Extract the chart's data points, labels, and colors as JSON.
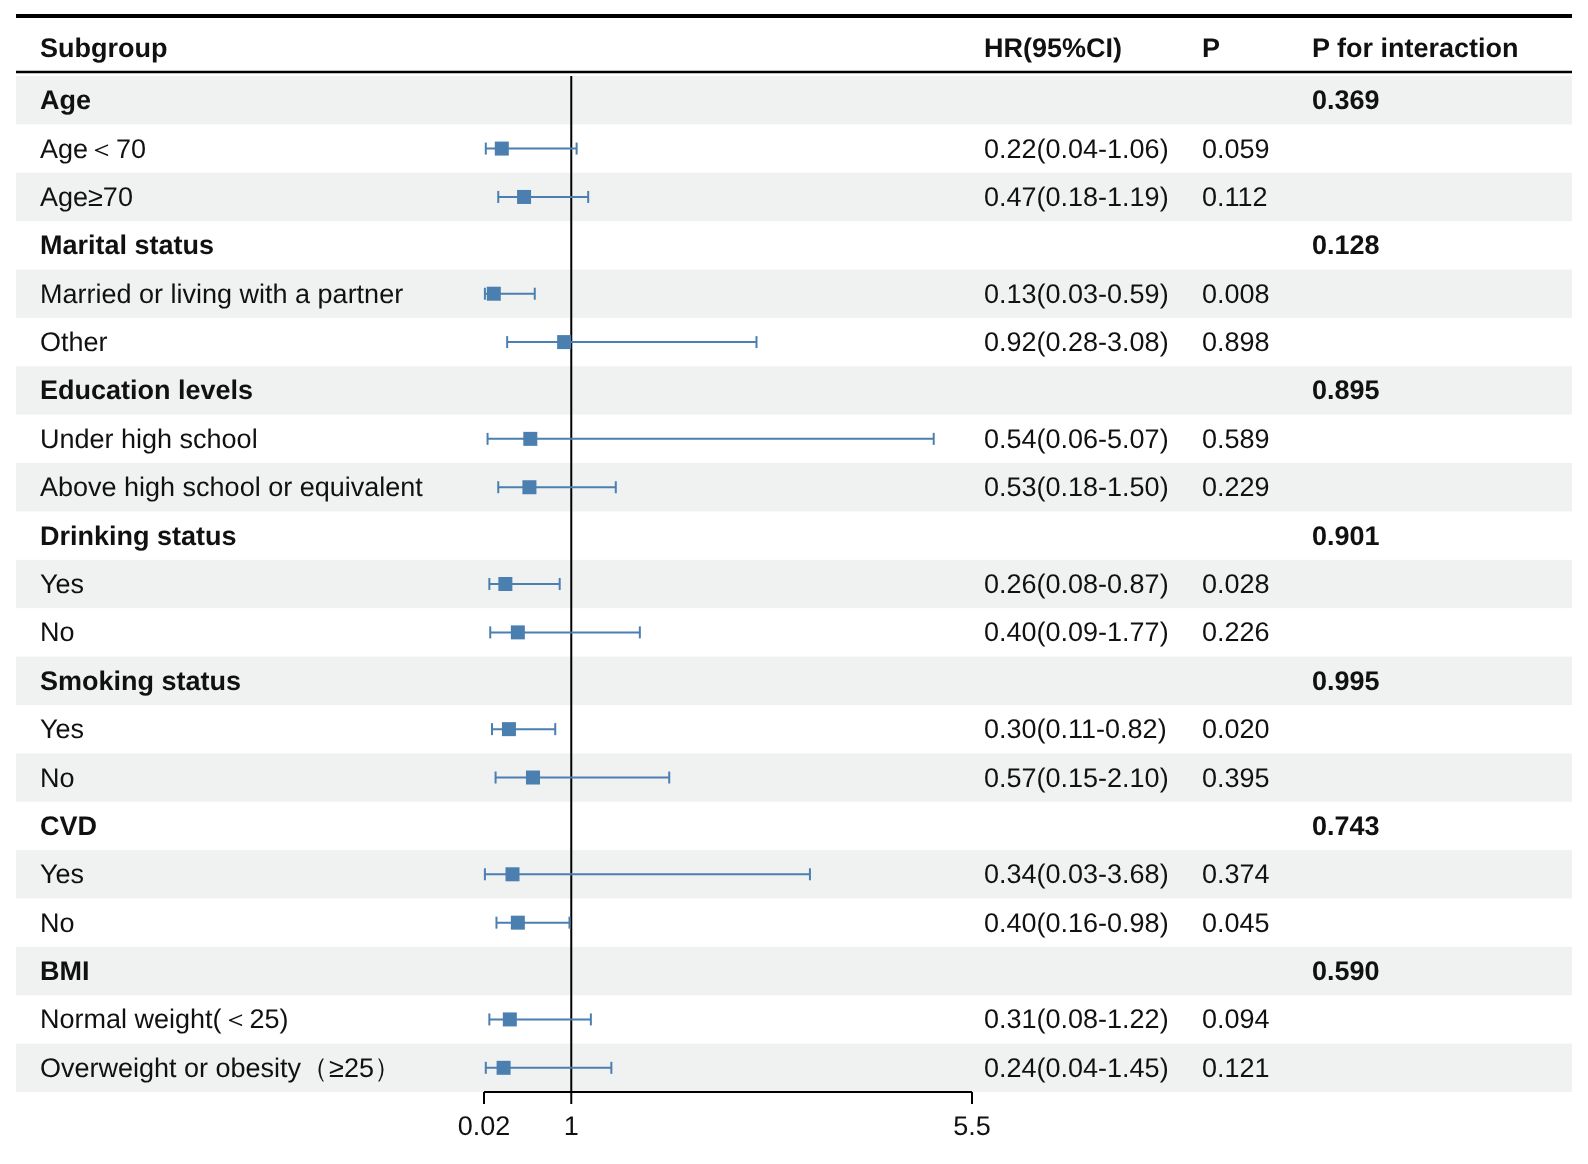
{
  "chart_data": {
    "type": "scatter",
    "orientation": "horizontal",
    "ylabel": "Subgroup",
    "color": "#4a7fb0",
    "marker": "square",
    "categories": [
      "Age",
      "Age＜70",
      "Age≥70",
      "Marital status",
      "Married or living with a partner",
      "Other",
      "Education levels",
      "Under high school",
      "Above high school or equivalent",
      "Drinking status",
      "Yes",
      "No",
      "Smoking status",
      "Yes",
      "No",
      "CVD",
      "Yes",
      "No",
      "BMI",
      "Normal weight(＜25)",
      "Overweight or obesity（≥25）"
    ],
    "values": [
      null,
      0.22,
      0.47,
      null,
      0.13,
      0.92,
      null,
      0.54,
      0.53,
      null,
      0.26,
      0.4,
      null,
      0.3,
      0.57,
      null,
      0.34,
      0.4,
      null,
      0.31,
      0.24
    ],
    "errors": [
      null,
      [
        0.04,
        1.06
      ],
      [
        0.18,
        1.19
      ],
      null,
      [
        0.03,
        0.59
      ],
      [
        0.28,
        3.08
      ],
      null,
      [
        0.06,
        5.07
      ],
      [
        0.18,
        1.5
      ],
      null,
      [
        0.08,
        0.87
      ],
      [
        0.09,
        1.77
      ],
      null,
      [
        0.11,
        0.82
      ],
      [
        0.15,
        2.1
      ],
      null,
      [
        0.03,
        3.68
      ],
      [
        0.16,
        0.98
      ],
      null,
      [
        0.08,
        1.22
      ],
      [
        0.04,
        1.45
      ]
    ],
    "value_labels": [
      null,
      "0.22(0.04-1.06)",
      "0.47(0.18-1.19)",
      null,
      "0.13(0.03-0.59)",
      "0.92(0.28-3.08)",
      null,
      "0.54(0.06-5.07)",
      "0.53(0.18-1.50)",
      null,
      "0.26(0.08-0.87)",
      "0.40(0.09-1.77)",
      null,
      "0.30(0.11-0.82)",
      "0.57(0.15-2.10)",
      null,
      "0.34(0.03-3.68)",
      "0.40(0.16-0.98)",
      null,
      "0.31(0.08-1.22)",
      "0.24(0.04-1.45)"
    ],
    "xlim": [
      0.02,
      5.5
    ],
    "xticks": [
      0.02,
      1,
      5.5
    ],
    "ref_lines": [
      {
        "axis": "x",
        "value": 1,
        "color": "#000000"
      }
    ],
    "annotations": [
      "HR(95%CI)",
      "P",
      "P for interaction",
      "0.369",
      "0.059",
      "0.112",
      "0.128",
      "0.008",
      "0.898",
      "0.895",
      "0.589",
      "0.229",
      "0.901",
      "0.028",
      "0.226",
      "0.995",
      "0.020",
      "0.395",
      "0.743",
      "0.374",
      "0.045",
      "0.590",
      "0.094",
      "0.121"
    ]
  }
}
